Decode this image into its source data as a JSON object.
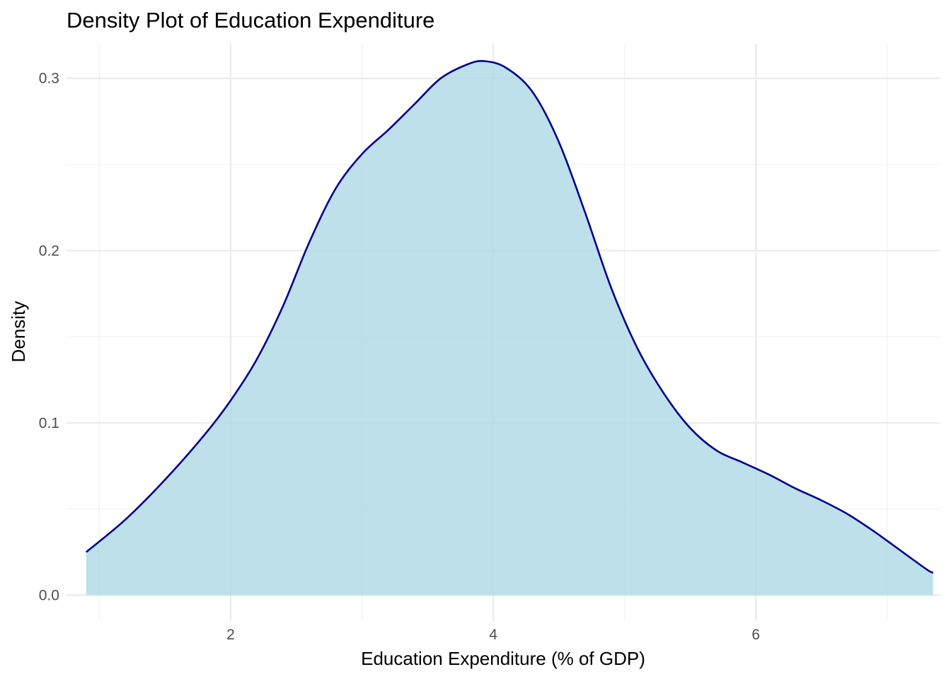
{
  "chart_data": {
    "type": "area",
    "title": "Density Plot of Education Expenditure",
    "xlabel": "Education Expenditure (% of GDP)",
    "ylabel": "Density",
    "xlim": [
      0.75,
      7.4
    ],
    "ylim": [
      -0.015,
      0.32
    ],
    "x_ticks": [
      2,
      4,
      6
    ],
    "y_ticks": [
      0.0,
      0.1,
      0.2,
      0.3
    ],
    "x_tick_labels": [
      "2",
      "4",
      "6"
    ],
    "y_tick_labels": [
      "0.0",
      "0.1",
      "0.2",
      "0.3"
    ],
    "grid": true,
    "legend": "none",
    "fill_color": "#add8e6",
    "fill_opacity": 0.8,
    "line_color": "#00008b",
    "series": [
      {
        "x": [
          0.9,
          1.2,
          1.5,
          1.8,
          2.0,
          2.2,
          2.4,
          2.6,
          2.8,
          3.0,
          3.2,
          3.4,
          3.6,
          3.8,
          3.93,
          4.1,
          4.3,
          4.5,
          4.7,
          4.9,
          5.1,
          5.3,
          5.5,
          5.7,
          5.9,
          6.1,
          6.3,
          6.5,
          6.7,
          6.9,
          7.1,
          7.3,
          7.35
        ],
        "y": [
          0.025,
          0.044,
          0.067,
          0.093,
          0.113,
          0.137,
          0.168,
          0.205,
          0.236,
          0.256,
          0.27,
          0.285,
          0.3,
          0.308,
          0.31,
          0.306,
          0.292,
          0.263,
          0.222,
          0.178,
          0.143,
          0.117,
          0.097,
          0.084,
          0.077,
          0.07,
          0.062,
          0.055,
          0.047,
          0.037,
          0.026,
          0.015,
          0.013
        ]
      }
    ]
  }
}
